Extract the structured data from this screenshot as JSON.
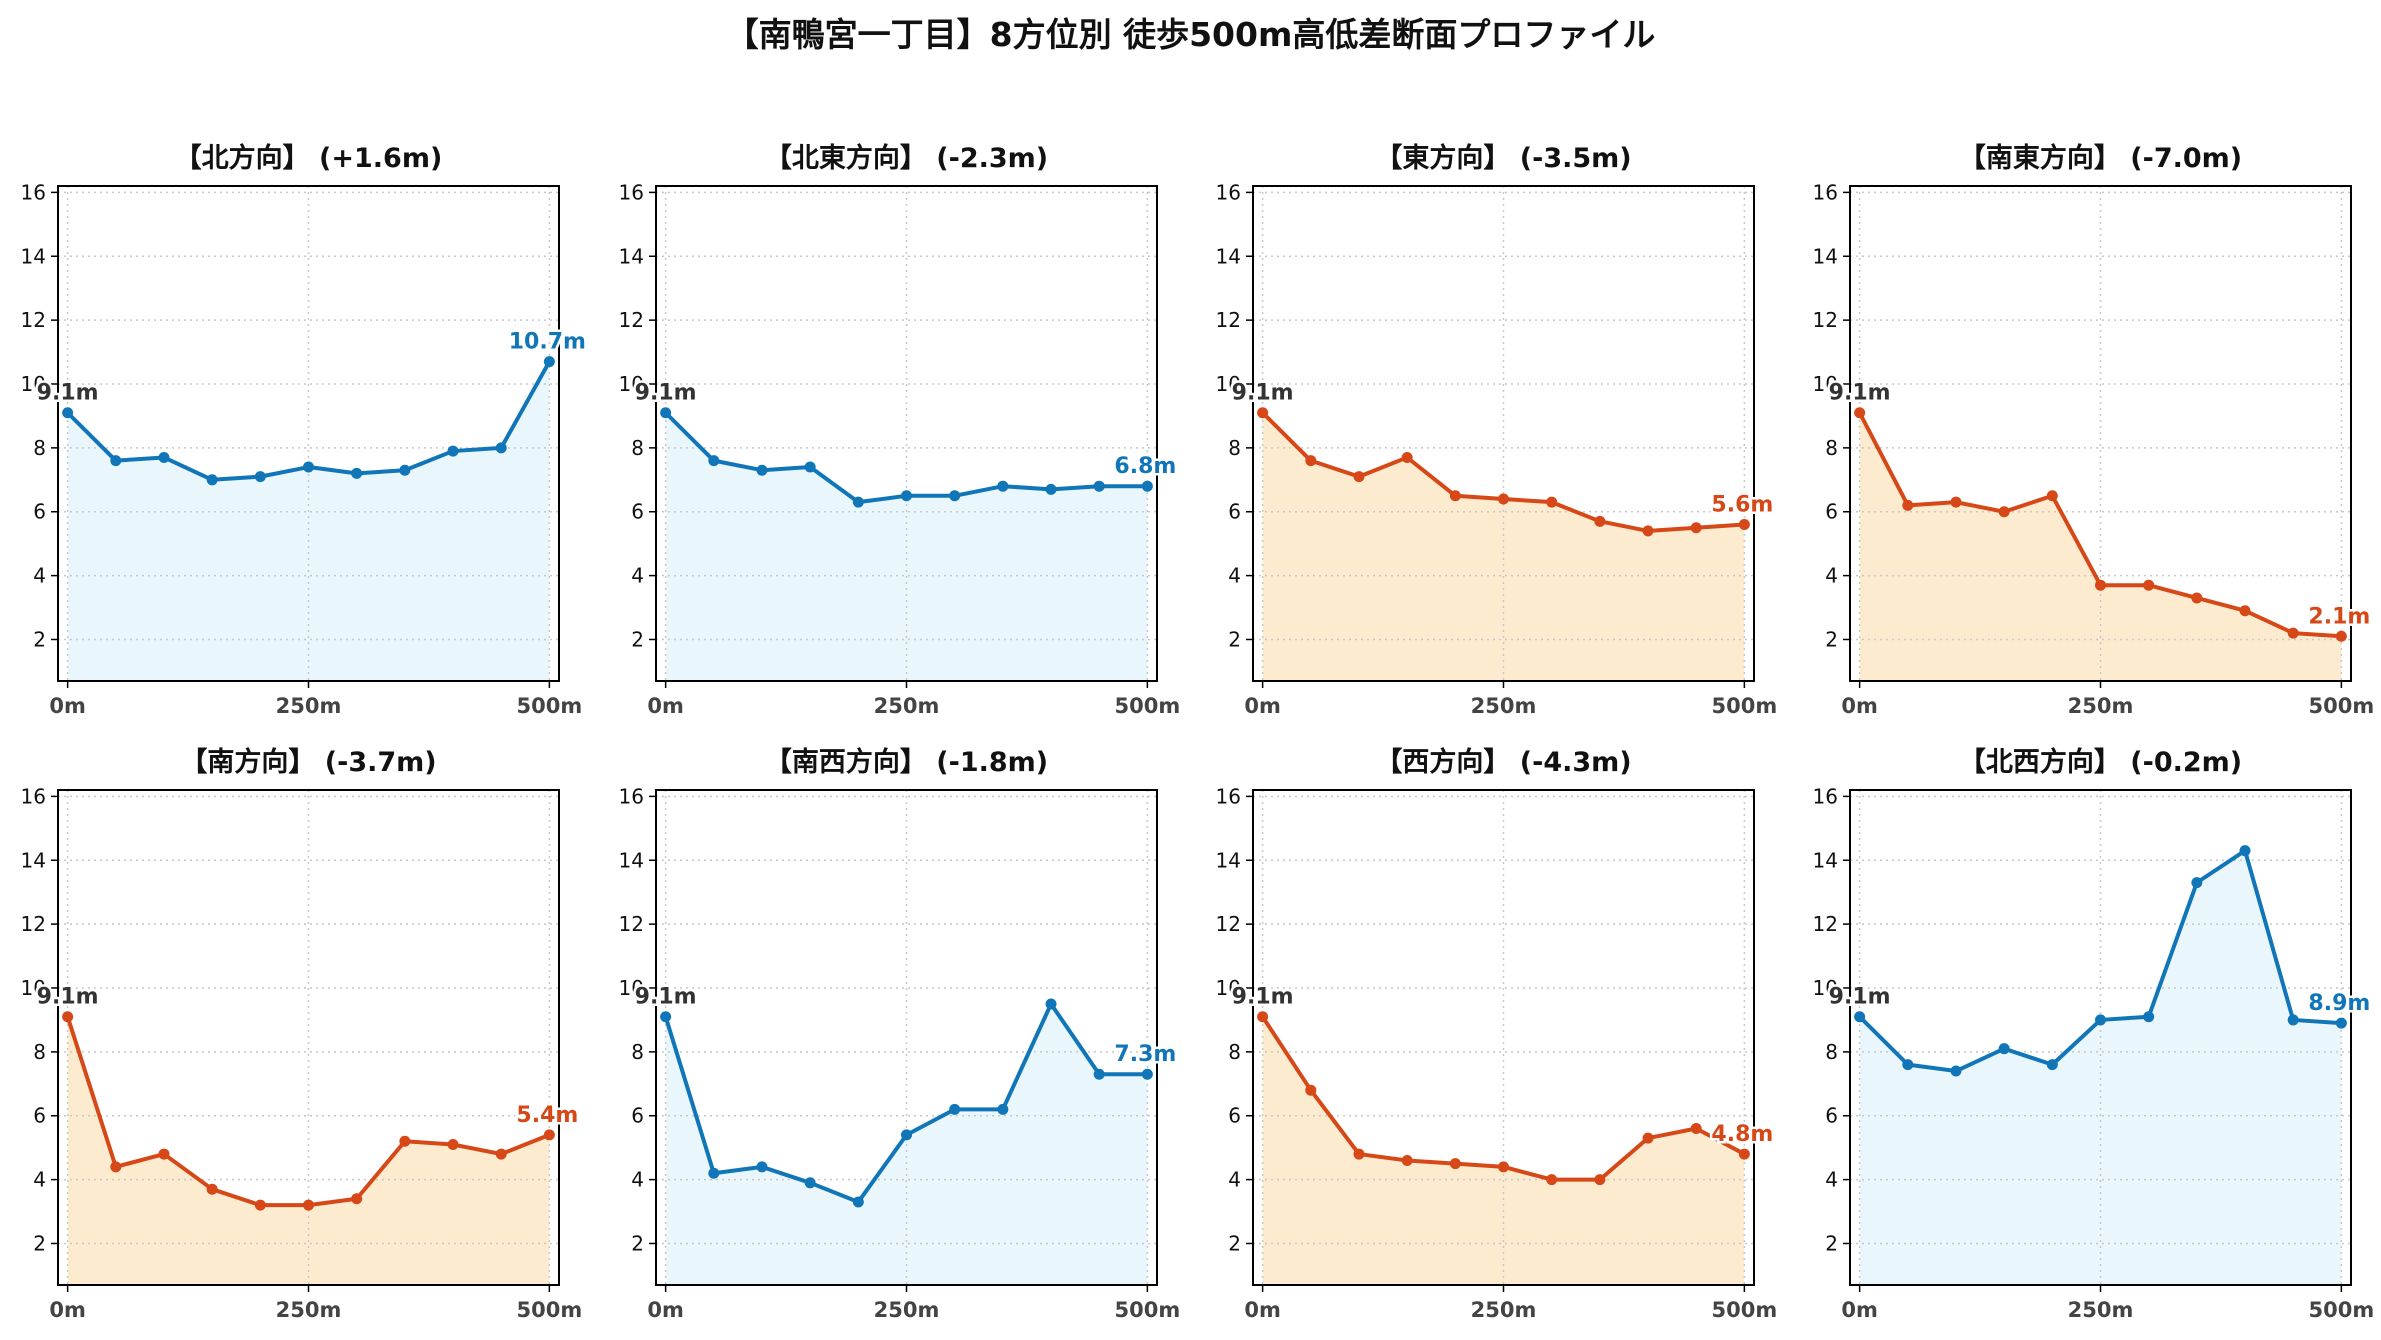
{
  "page": {
    "title": "【南鴨宮一丁目】8方位別 徒歩500m高低差断面プロファイル"
  },
  "colors": {
    "up_line": "#1176b8",
    "up_fill": "#e9f6fb",
    "down_line": "#d64818",
    "down_fill": "#fdebd0",
    "start_label": "#333333",
    "grid": "#c8c8c8"
  },
  "chart_data": [
    {
      "type": "area",
      "title": "【北方向】 (+1.6m)",
      "trend": "up",
      "x": [
        0,
        50,
        100,
        150,
        200,
        250,
        300,
        350,
        400,
        450,
        500
      ],
      "values": [
        9.1,
        7.6,
        7.7,
        7.0,
        7.1,
        7.4,
        7.2,
        7.3,
        7.9,
        8.0,
        10.7
      ],
      "start_label": "9.1m",
      "end_label": "10.7m",
      "x_ticks": [
        "0m",
        "250m",
        "500m"
      ],
      "y_ticks": [
        "2",
        "4",
        "6",
        "8",
        "10",
        "12",
        "14",
        "16"
      ],
      "ylim": [
        0.7,
        16.2
      ],
      "xlim": [
        -10,
        510
      ],
      "grid": true
    },
    {
      "type": "area",
      "title": "【北東方向】 (-2.3m)",
      "trend": "up",
      "x": [
        0,
        50,
        100,
        150,
        200,
        250,
        300,
        350,
        400,
        450,
        500
      ],
      "values": [
        9.1,
        7.6,
        7.3,
        7.4,
        6.3,
        6.5,
        6.5,
        6.8,
        6.7,
        6.8,
        6.8
      ],
      "start_label": "9.1m",
      "end_label": "6.8m",
      "x_ticks": [
        "0m",
        "250m",
        "500m"
      ],
      "y_ticks": [
        "2",
        "4",
        "6",
        "8",
        "10",
        "12",
        "14",
        "16"
      ],
      "ylim": [
        0.7,
        16.2
      ],
      "xlim": [
        -10,
        510
      ],
      "grid": true
    },
    {
      "type": "area",
      "title": "【東方向】 (-3.5m)",
      "trend": "down",
      "x": [
        0,
        50,
        100,
        150,
        200,
        250,
        300,
        350,
        400,
        450,
        500
      ],
      "values": [
        9.1,
        7.6,
        7.1,
        7.7,
        6.5,
        6.4,
        6.3,
        5.7,
        5.4,
        5.5,
        5.6
      ],
      "start_label": "9.1m",
      "end_label": "5.6m",
      "x_ticks": [
        "0m",
        "250m",
        "500m"
      ],
      "y_ticks": [
        "2",
        "4",
        "6",
        "8",
        "10",
        "12",
        "14",
        "16"
      ],
      "ylim": [
        0.7,
        16.2
      ],
      "xlim": [
        -10,
        510
      ],
      "grid": true
    },
    {
      "type": "area",
      "title": "【南東方向】 (-7.0m)",
      "trend": "down",
      "x": [
        0,
        50,
        100,
        150,
        200,
        250,
        300,
        350,
        400,
        450,
        500
      ],
      "values": [
        9.1,
        6.2,
        6.3,
        6.0,
        6.5,
        3.7,
        3.7,
        3.3,
        2.9,
        2.2,
        2.1
      ],
      "start_label": "9.1m",
      "end_label": "2.1m",
      "x_ticks": [
        "0m",
        "250m",
        "500m"
      ],
      "y_ticks": [
        "2",
        "4",
        "6",
        "8",
        "10",
        "12",
        "14",
        "16"
      ],
      "ylim": [
        0.7,
        16.2
      ],
      "xlim": [
        -10,
        510
      ],
      "grid": true
    },
    {
      "type": "area",
      "title": "【南方向】 (-3.7m)",
      "trend": "down",
      "x": [
        0,
        50,
        100,
        150,
        200,
        250,
        300,
        350,
        400,
        450,
        500
      ],
      "values": [
        9.1,
        4.4,
        4.8,
        3.7,
        3.2,
        3.2,
        3.4,
        5.2,
        5.1,
        4.8,
        5.4
      ],
      "start_label": "9.1m",
      "end_label": "5.4m",
      "x_ticks": [
        "0m",
        "250m",
        "500m"
      ],
      "y_ticks": [
        "2",
        "4",
        "6",
        "8",
        "10",
        "12",
        "14",
        "16"
      ],
      "ylim": [
        0.7,
        16.2
      ],
      "xlim": [
        -10,
        510
      ],
      "grid": true
    },
    {
      "type": "area",
      "title": "【南西方向】 (-1.8m)",
      "trend": "up",
      "x": [
        0,
        50,
        100,
        150,
        200,
        250,
        300,
        350,
        400,
        450,
        500
      ],
      "values": [
        9.1,
        4.2,
        4.4,
        3.9,
        3.3,
        5.4,
        6.2,
        6.2,
        9.5,
        7.3,
        7.3
      ],
      "start_label": "9.1m",
      "end_label": "7.3m",
      "x_ticks": [
        "0m",
        "250m",
        "500m"
      ],
      "y_ticks": [
        "2",
        "4",
        "6",
        "8",
        "10",
        "12",
        "14",
        "16"
      ],
      "ylim": [
        0.7,
        16.2
      ],
      "xlim": [
        -10,
        510
      ],
      "grid": true
    },
    {
      "type": "area",
      "title": "【西方向】 (-4.3m)",
      "trend": "down",
      "x": [
        0,
        50,
        100,
        150,
        200,
        250,
        300,
        350,
        400,
        450,
        500
      ],
      "values": [
        9.1,
        6.8,
        4.8,
        4.6,
        4.5,
        4.4,
        4.0,
        4.0,
        5.3,
        5.6,
        4.8
      ],
      "start_label": "9.1m",
      "end_label": "4.8m",
      "x_ticks": [
        "0m",
        "250m",
        "500m"
      ],
      "y_ticks": [
        "2",
        "4",
        "6",
        "8",
        "10",
        "12",
        "14",
        "16"
      ],
      "ylim": [
        0.7,
        16.2
      ],
      "xlim": [
        -10,
        510
      ],
      "grid": true
    },
    {
      "type": "area",
      "title": "【北西方向】 (-0.2m)",
      "trend": "up",
      "x": [
        0,
        50,
        100,
        150,
        200,
        250,
        300,
        350,
        400,
        450,
        500
      ],
      "values": [
        9.1,
        7.6,
        7.4,
        8.1,
        7.6,
        9.0,
        9.1,
        13.3,
        14.3,
        9.0,
        8.9
      ],
      "start_label": "9.1m",
      "end_label": "8.9m",
      "x_ticks": [
        "0m",
        "250m",
        "500m"
      ],
      "y_ticks": [
        "2",
        "4",
        "6",
        "8",
        "10",
        "12",
        "14",
        "16"
      ],
      "ylim": [
        0.7,
        16.2
      ],
      "xlim": [
        -10,
        510
      ],
      "grid": true
    }
  ]
}
